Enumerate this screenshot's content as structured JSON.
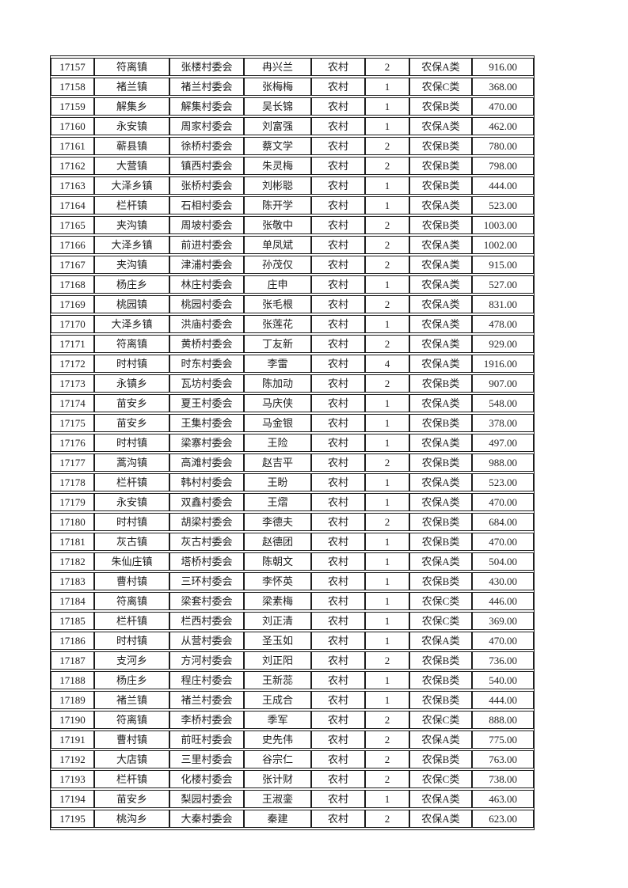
{
  "page": {
    "background": "#ffffff"
  },
  "colors": {
    "text": "#1d1d1d",
    "border": "#1d1d1d"
  },
  "table": {
    "column_keys": [
      "record_id",
      "town",
      "village_committee",
      "person_name",
      "area_type",
      "count",
      "insurance_category",
      "amount"
    ],
    "rows": [
      [
        "17157",
        "符离镇",
        "张楼村委会",
        "冉兴兰",
        "农村",
        "2",
        "农保A类",
        "916.00"
      ],
      [
        "17158",
        "褚兰镇",
        "褚兰村委会",
        "张梅梅",
        "农村",
        "1",
        "农保C类",
        "368.00"
      ],
      [
        "17159",
        "解集乡",
        "解集村委会",
        "吴长锦",
        "农村",
        "1",
        "农保B类",
        "470.00"
      ],
      [
        "17160",
        "永安镇",
        "周家村委会",
        "刘富强",
        "农村",
        "1",
        "农保A类",
        "462.00"
      ],
      [
        "17161",
        "蕲县镇",
        "徐桥村委会",
        "蔡文学",
        "农村",
        "2",
        "农保B类",
        "780.00"
      ],
      [
        "17162",
        "大营镇",
        "镇西村委会",
        "朱灵梅",
        "农村",
        "2",
        "农保B类",
        "798.00"
      ],
      [
        "17163",
        "大泽乡镇",
        "张桥村委会",
        "刘彬聪",
        "农村",
        "1",
        "农保B类",
        "444.00"
      ],
      [
        "17164",
        "栏杆镇",
        "石相村委会",
        "陈开学",
        "农村",
        "1",
        "农保A类",
        "523.00"
      ],
      [
        "17165",
        "夹沟镇",
        "周坡村委会",
        "张敬中",
        "农村",
        "2",
        "农保B类",
        "1003.00"
      ],
      [
        "17166",
        "大泽乡镇",
        "前进村委会",
        "单凤斌",
        "农村",
        "2",
        "农保A类",
        "1002.00"
      ],
      [
        "17167",
        "夹沟镇",
        "津浦村委会",
        "孙茂仅",
        "农村",
        "2",
        "农保A类",
        "915.00"
      ],
      [
        "17168",
        "杨庄乡",
        "林庄村委会",
        "庄申",
        "农村",
        "1",
        "农保A类",
        "527.00"
      ],
      [
        "17169",
        "桃园镇",
        "桃园村委会",
        "张毛根",
        "农村",
        "2",
        "农保A类",
        "831.00"
      ],
      [
        "17170",
        "大泽乡镇",
        "洪庙村委会",
        "张莲花",
        "农村",
        "1",
        "农保A类",
        "478.00"
      ],
      [
        "17171",
        "符离镇",
        "黄桥村委会",
        "丁友新",
        "农村",
        "2",
        "农保A类",
        "929.00"
      ],
      [
        "17172",
        "时村镇",
        "时东村委会",
        "李雷",
        "农村",
        "4",
        "农保A类",
        "1916.00"
      ],
      [
        "17173",
        "永镇乡",
        "瓦坊村委会",
        "陈加动",
        "农村",
        "2",
        "农保B类",
        "907.00"
      ],
      [
        "17174",
        "苗安乡",
        "夏王村委会",
        "马庆侠",
        "农村",
        "1",
        "农保A类",
        "548.00"
      ],
      [
        "17175",
        "苗安乡",
        "王集村委会",
        "马金银",
        "农村",
        "1",
        "农保B类",
        "378.00"
      ],
      [
        "17176",
        "时村镇",
        "梁寨村委会",
        "王险",
        "农村",
        "1",
        "农保A类",
        "497.00"
      ],
      [
        "17177",
        "蒿沟镇",
        "高滩村委会",
        "赵吉平",
        "农村",
        "2",
        "农保B类",
        "988.00"
      ],
      [
        "17178",
        "栏杆镇",
        "韩村村委会",
        "王盼",
        "农村",
        "1",
        "农保A类",
        "523.00"
      ],
      [
        "17179",
        "永安镇",
        "双鑫村委会",
        "王熠",
        "农村",
        "1",
        "农保A类",
        "470.00"
      ],
      [
        "17180",
        "时村镇",
        "胡梁村委会",
        "李德夫",
        "农村",
        "2",
        "农保B类",
        "684.00"
      ],
      [
        "17181",
        "灰古镇",
        "灰古村委会",
        "赵德团",
        "农村",
        "1",
        "农保B类",
        "470.00"
      ],
      [
        "17182",
        "朱仙庄镇",
        "塔桥村委会",
        "陈朝文",
        "农村",
        "1",
        "农保A类",
        "504.00"
      ],
      [
        "17183",
        "曹村镇",
        "三环村委会",
        "李怀英",
        "农村",
        "1",
        "农保B类",
        "430.00"
      ],
      [
        "17184",
        "符离镇",
        "梁套村委会",
        "梁素梅",
        "农村",
        "1",
        "农保C类",
        "446.00"
      ],
      [
        "17185",
        "栏杆镇",
        "栏西村委会",
        "刘正清",
        "农村",
        "1",
        "农保C类",
        "369.00"
      ],
      [
        "17186",
        "时村镇",
        "从营村委会",
        "圣玉如",
        "农村",
        "1",
        "农保A类",
        "470.00"
      ],
      [
        "17187",
        "支河乡",
        "方河村委会",
        "刘正阳",
        "农村",
        "2",
        "农保B类",
        "736.00"
      ],
      [
        "17188",
        "杨庄乡",
        "程庄村委会",
        "王新蕊",
        "农村",
        "1",
        "农保B类",
        "540.00"
      ],
      [
        "17189",
        "褚兰镇",
        "褚兰村委会",
        "王成合",
        "农村",
        "1",
        "农保B类",
        "444.00"
      ],
      [
        "17190",
        "符离镇",
        "李桥村委会",
        "季军",
        "农村",
        "2",
        "农保C类",
        "888.00"
      ],
      [
        "17191",
        "曹村镇",
        "前旺村委会",
        "史先伟",
        "农村",
        "2",
        "农保A类",
        "775.00"
      ],
      [
        "17192",
        "大店镇",
        "三里村委会",
        "谷宗仁",
        "农村",
        "2",
        "农保B类",
        "763.00"
      ],
      [
        "17193",
        "栏杆镇",
        "化楼村委会",
        "张计财",
        "农村",
        "2",
        "农保C类",
        "738.00"
      ],
      [
        "17194",
        "苗安乡",
        "梨园村委会",
        "王淑銮",
        "农村",
        "1",
        "农保A类",
        "463.00"
      ],
      [
        "17195",
        "桃沟乡",
        "大秦村委会",
        "秦建",
        "农村",
        "2",
        "农保A类",
        "623.00"
      ]
    ]
  }
}
